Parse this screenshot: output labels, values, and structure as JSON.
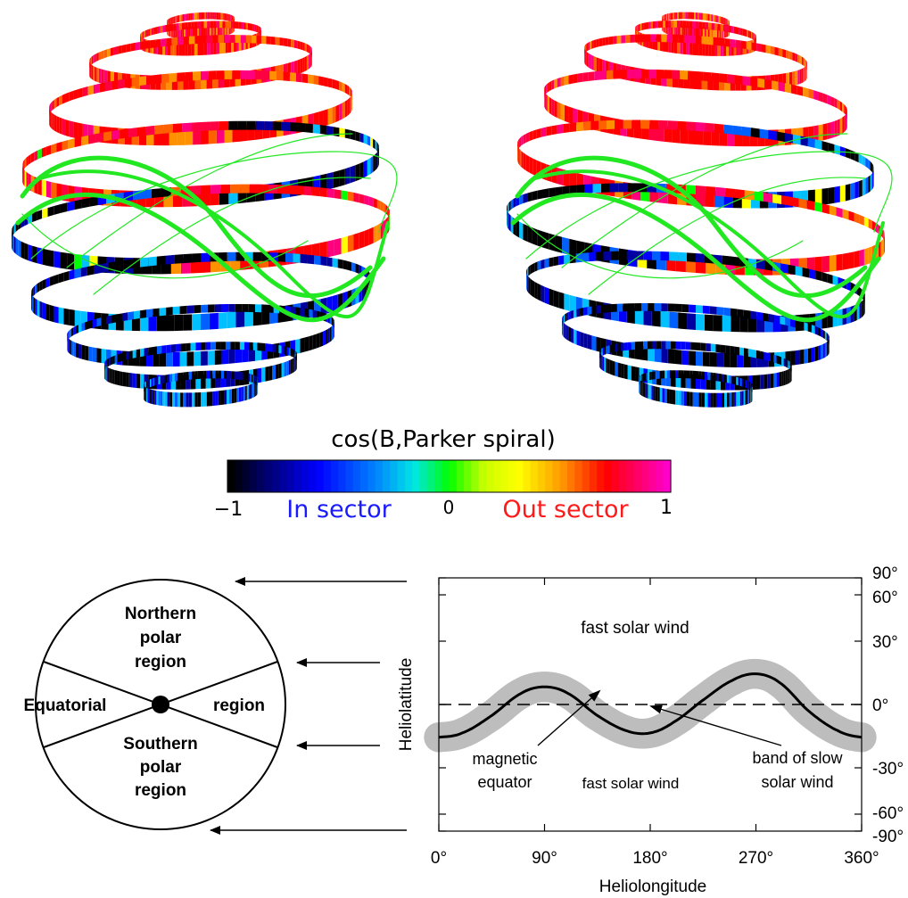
{
  "colorbar": {
    "title": "cos(B,Parker spiral)",
    "tick_min": "−1",
    "tick_mid": "0",
    "tick_max": "1",
    "label_in": "In sector",
    "label_out": "Out sector",
    "label_in_color": "#1a1aff",
    "label_out_color": "#ff1a1a"
  },
  "globe_colors": {
    "in_sector": [
      "#000000",
      "#0000a0",
      "#0000ff",
      "#0060ff",
      "#00c0ff"
    ],
    "out_sector": [
      "#ff0000",
      "#ff007f",
      "#ff0040",
      "#ff6000",
      "#ff9000"
    ],
    "neutral": [
      "#00ff00",
      "#ffff00"
    ],
    "field_lines": "#22e822"
  },
  "circle_diagram": {
    "northern": [
      "Northern",
      "polar",
      "region"
    ],
    "southern": [
      "Southern",
      "polar",
      "region"
    ],
    "equatorial_left": "Equatorial",
    "equatorial_right": "region"
  },
  "chart_data": {
    "type": "line",
    "xlabel": "Heliolongitude",
    "ylabel": "Heliolatitude",
    "xlim": [
      0,
      360
    ],
    "ylim": [
      -90,
      90
    ],
    "x_ticks": [
      "0°",
      "90°",
      "180°",
      "270°",
      "360°"
    ],
    "y_ticks": [
      "90°",
      "60°",
      "30°",
      "0°",
      "-30°",
      "-60°",
      "-90°"
    ],
    "y_tick_values": [
      90,
      60,
      30,
      0,
      -30,
      -60,
      -90
    ],
    "x_tick_values": [
      0,
      90,
      180,
      270,
      360
    ],
    "magnetic_equator": {
      "x": [
        0,
        20,
        45,
        70,
        90,
        110,
        135,
        160,
        180,
        200,
        225,
        250,
        270,
        290,
        315,
        340,
        360
      ],
      "y": [
        -15,
        -13,
        -5,
        5,
        8,
        5,
        -5,
        -12,
        -13,
        -8,
        2,
        11,
        14,
        10,
        -3,
        -12,
        -15
      ]
    },
    "slow_wind_band_halfwidth": 7,
    "reference_line_y": 0,
    "annotations": {
      "fast_top": "fast solar wind",
      "fast_bottom": "fast solar wind",
      "mag_eq_1": "magnetic",
      "mag_eq_2": "equator",
      "band_1": "band of slow",
      "band_2": "solar wind"
    },
    "band_color": "#bdbdbd",
    "line_color": "#000000"
  }
}
